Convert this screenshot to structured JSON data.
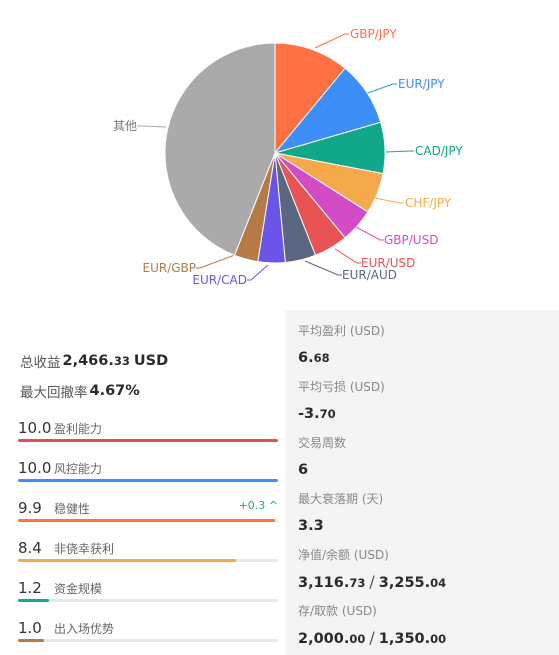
{
  "chart_data": {
    "type": "pie",
    "series": [
      {
        "name": "GBP/JPY",
        "value": 11.0,
        "color": "#ff7043"
      },
      {
        "name": "EUR/JPY",
        "value": 9.5,
        "color": "#3d8ff7"
      },
      {
        "name": "CAD/JPY",
        "value": 7.5,
        "color": "#10a888"
      },
      {
        "name": "CHF/JPY",
        "value": 6.0,
        "color": "#f5a94a"
      },
      {
        "name": "GBP/USD",
        "value": 5.0,
        "color": "#d34cc5"
      },
      {
        "name": "EUR/USD",
        "value": 5.0,
        "color": "#e85353"
      },
      {
        "name": "EUR/AUD",
        "value": 4.5,
        "color": "#5b6680"
      },
      {
        "name": "EUR/CAD",
        "value": 4.0,
        "color": "#6a55e8"
      },
      {
        "name": "EUR/GBP",
        "value": 3.5,
        "color": "#b57a45"
      },
      {
        "name": "其他",
        "value": 44.0,
        "color": "#aaaaaa"
      }
    ]
  },
  "summary": {
    "total_profit_label": "总收益",
    "total_profit_int": "2,466.",
    "total_profit_dec": "33",
    "total_profit_unit": "USD",
    "max_drawdown_label": "最大回撤率",
    "max_drawdown_value": "4.67%"
  },
  "scores": [
    {
      "value": "10.0",
      "label": "盈利能力",
      "fill": 1.0,
      "color": "#e05252",
      "delta": ""
    },
    {
      "value": "10.0",
      "label": "风控能力",
      "fill": 1.0,
      "color": "#3d8ff7",
      "delta": ""
    },
    {
      "value": "9.9",
      "label": "稳健性",
      "fill": 0.99,
      "color": "#ff7043",
      "delta": "+0.3 ^"
    },
    {
      "value": "8.4",
      "label": "非侥幸获利",
      "fill": 0.84,
      "color": "#f5a94a",
      "delta": ""
    },
    {
      "value": "1.2",
      "label": "资金规模",
      "fill": 0.12,
      "color": "#10a888",
      "delta": ""
    },
    {
      "value": "1.0",
      "label": "出入场优势",
      "fill": 0.1,
      "color": "#b57a45",
      "delta": ""
    }
  ],
  "stats": {
    "avg_profit": {
      "label": "平均盈利 (USD)",
      "int": "6.",
      "dec": "68"
    },
    "avg_loss": {
      "label": "平均亏损 (USD)",
      "int": "-3.",
      "dec": "70"
    },
    "trades": {
      "label": "交易周数",
      "value": "6"
    },
    "max_stagnation": {
      "label": "最大衰落期 (天)",
      "value": "3.3"
    },
    "equity_balance": {
      "label": "净值/余额 (USD)",
      "a_int": "3,116.",
      "a_dec": "73",
      "b_int": "3,255.",
      "b_dec": "04"
    },
    "deposit_withdraw": {
      "label": "存/取款 (USD)",
      "a_int": "2,000.",
      "a_dec": "00",
      "b_int": "1,350.",
      "b_dec": "00"
    }
  }
}
